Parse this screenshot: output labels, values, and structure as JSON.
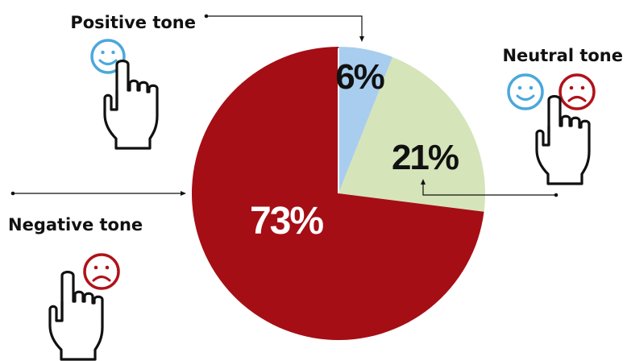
{
  "chart_data": {
    "type": "pie",
    "slices": [
      {
        "label": "Positive tone",
        "value": 6,
        "display": "6%",
        "color": "#a8cdee",
        "text_color": "#111111"
      },
      {
        "label": "Neutral tone",
        "value": 21,
        "display": "21%",
        "color": "#d5e4b9",
        "text_color": "#111111"
      },
      {
        "label": "Negative tone",
        "value": 73,
        "display": "73%",
        "color": "#a50e15",
        "text_color": "#ffffff"
      }
    ],
    "start_angle": "12 o'clock",
    "direction": "clockwise"
  },
  "labels": {
    "positive": "Positive tone",
    "neutral": "Neutral tone",
    "negative": "Negative tone"
  },
  "icons": {
    "smiley_color": "#4aa8dc",
    "frown_color": "#b0121a",
    "hand_stroke": "#111111",
    "happy": "smiley-face-icon",
    "sad": "frowning-face-icon",
    "hand": "pointing-hand-icon"
  }
}
